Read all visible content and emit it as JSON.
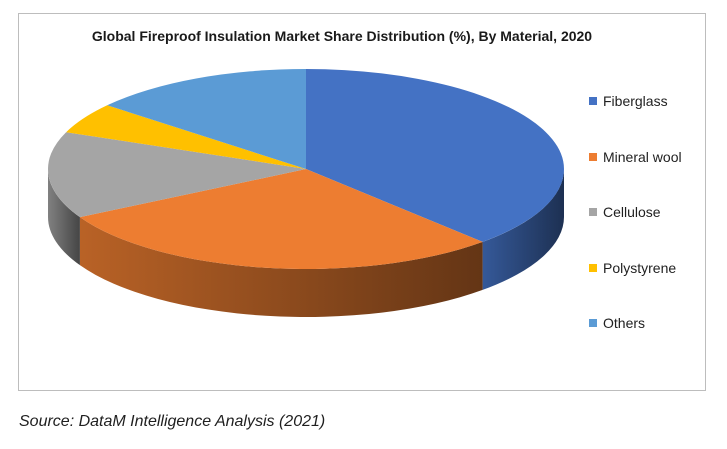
{
  "chart_data": {
    "type": "pie",
    "title": "Global Fireproof Insulation Market Share Distribution (%), By Material, 2020",
    "categories": [
      "Fiberglass",
      "Mineral wool",
      "Cellulose",
      "Polystyrene",
      "Others"
    ],
    "values": [
      38,
      29,
      14,
      5,
      14
    ],
    "colors": [
      "#4472c4",
      "#ed7d31",
      "#a5a5a5",
      "#ffc000",
      "#5b9bd5"
    ],
    "legend_position": "right",
    "style": "3d"
  },
  "source": "Source: DataM Intelligence Analysis (2021)"
}
